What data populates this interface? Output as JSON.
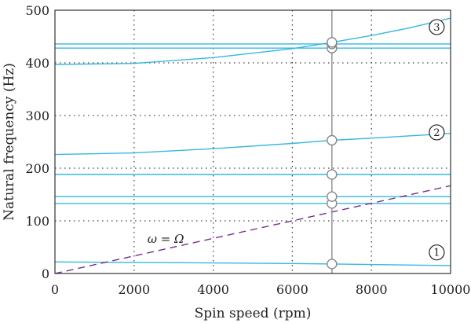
{
  "chart_data": {
    "type": "line",
    "xlabel": "Spin speed (rpm)",
    "ylabel": "Natural frequency (Hz)",
    "xlim": [
      0,
      10000
    ],
    "ylim": [
      0,
      500
    ],
    "xticks": [
      0,
      2000,
      4000,
      6000,
      8000,
      10000
    ],
    "yticks": [
      0,
      100,
      200,
      300,
      400,
      500
    ],
    "xtick_labels": [
      "0",
      "2000",
      "4000",
      "6000",
      "8000",
      "10000"
    ],
    "ytick_labels": [
      "0",
      "100",
      "200",
      "300",
      "400",
      "500"
    ],
    "grid": true,
    "colors": {
      "curve": "#35b8e0",
      "excitation": "#7b2d8e",
      "speed_line": "#999999"
    },
    "series": [
      {
        "x": [
          0,
          2000,
          4000,
          6000,
          7000,
          8000,
          10000
        ],
        "y": [
          22,
          21,
          20,
          19,
          18,
          17,
          15
        ],
        "style": "solid"
      },
      {
        "x": [
          0,
          10000
        ],
        "y": [
          133,
          133
        ],
        "style": "solid"
      },
      {
        "x": [
          0,
          10000
        ],
        "y": [
          146,
          146
        ],
        "style": "solid"
      },
      {
        "x": [
          0,
          10000
        ],
        "y": [
          188,
          188
        ],
        "style": "solid"
      },
      {
        "x": [
          0,
          2000,
          4000,
          6000,
          7000,
          8000,
          10000
        ],
        "y": [
          226,
          229,
          237,
          247,
          253,
          257,
          266
        ],
        "style": "solid"
      },
      {
        "x": [
          0,
          2000,
          4000,
          6000,
          7000,
          8000,
          9000,
          10000
        ],
        "y": [
          397,
          399,
          410,
          427,
          439,
          452,
          467,
          485
        ],
        "style": "solid"
      },
      {
        "x": [
          0,
          10000
        ],
        "y": [
          428,
          428
        ],
        "style": "solid"
      },
      {
        "x": [
          0,
          10000
        ],
        "y": [
          436,
          436
        ],
        "style": "solid"
      },
      {
        "x": [
          0,
          10000
        ],
        "y": [
          0,
          166.7
        ],
        "style": "dashed",
        "color_key": "excitation"
      }
    ],
    "operating_speed": {
      "x": 7000,
      "marker_y": [
        18,
        133,
        146,
        188,
        253,
        428,
        436,
        439
      ]
    },
    "mode_labels": [
      {
        "text": "1",
        "x": 9650,
        "y": 40
      },
      {
        "text": "2",
        "x": 9650,
        "y": 268
      },
      {
        "text": "3",
        "x": 9650,
        "y": 468
      }
    ],
    "annotation": {
      "text": "ω = Ω",
      "x": 2800,
      "y": 58
    }
  }
}
